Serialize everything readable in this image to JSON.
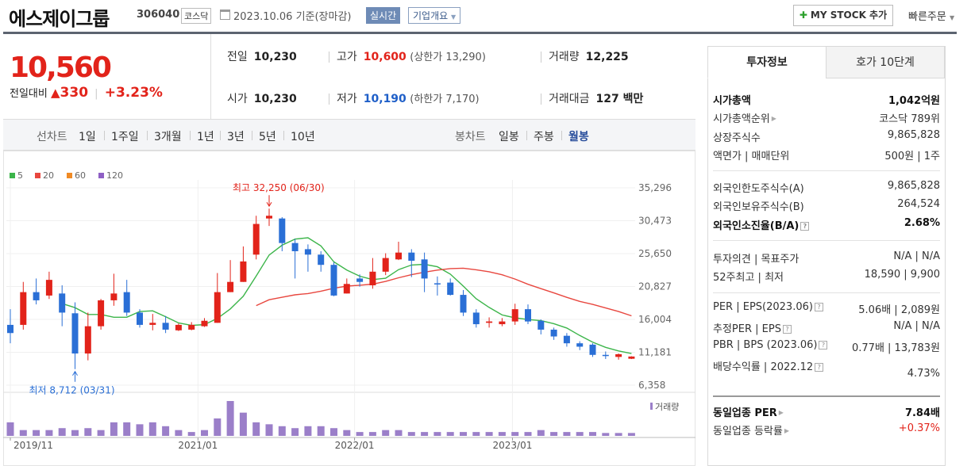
{
  "header": {
    "company": "에스제이그룹",
    "code": "306040",
    "market": "코스닥",
    "date": "2023.10.06 기준(장마감)",
    "realtime": "실시간",
    "corp_info": "기업개요",
    "my_stock": "MY STOCK 추가",
    "quick_order": "빠른주문"
  },
  "price": {
    "current": "10,560",
    "change_label": "전일대비",
    "change": "330",
    "change_pct": "+3.23%"
  },
  "stats": {
    "prev_label": "전일",
    "prev": "10,230",
    "high_label": "고가",
    "high": "10,600",
    "upper_limit": "(상한가 13,290)",
    "volume_label": "거래량",
    "volume": "12,225",
    "open_label": "시가",
    "open": "10,230",
    "low_label": "저가",
    "low": "10,190",
    "lower_limit": "(하한가 7,170)",
    "amount_label": "거래대금",
    "amount": "127 백만"
  },
  "period_bar": {
    "line_chart": "선차트",
    "periods": [
      "1일",
      "1주일",
      "3개월",
      "1년",
      "3년",
      "5년",
      "10년"
    ],
    "candle_chart": "봉차트",
    "candles": [
      "일봉",
      "주봉",
      "월봉"
    ],
    "active_candle": "월봉"
  },
  "chart_data": {
    "type": "candlestick",
    "legend": [
      {
        "name": "5",
        "color": "#3cb54a"
      },
      {
        "name": "20",
        "color": "#e8473f"
      },
      {
        "name": "60",
        "color": "#f08a24"
      },
      {
        "name": "120",
        "color": "#8e5fc4"
      }
    ],
    "y_ticks": [
      "35,296",
      "30,473",
      "25,650",
      "20,827",
      "16,004",
      "11,181",
      "6,358"
    ],
    "y_range": [
      6358,
      35296
    ],
    "x_labels": [
      "2019/11",
      "2021/01",
      "2022/01",
      "2023/01"
    ],
    "max_annotation": "최고 32,250 (06/30)",
    "min_annotation": "최저 8,712 (03/31)",
    "volume_label": "거래량",
    "candles": [
      {
        "o": 15200,
        "c": 14000,
        "h": 17500,
        "l": 12500
      },
      {
        "o": 15200,
        "c": 20000,
        "h": 21500,
        "l": 14500
      },
      {
        "o": 20000,
        "c": 18800,
        "h": 22000,
        "l": 18200
      },
      {
        "o": 19500,
        "c": 21800,
        "h": 23000,
        "l": 19000
      },
      {
        "o": 19800,
        "c": 17000,
        "h": 21000,
        "l": 15000
      },
      {
        "o": 16900,
        "c": 11000,
        "h": 18500,
        "l": 8712
      },
      {
        "o": 11000,
        "c": 15000,
        "h": 17000,
        "l": 10000
      },
      {
        "o": 15000,
        "c": 18800,
        "h": 19000,
        "l": 14500
      },
      {
        "o": 18800,
        "c": 19800,
        "h": 22700,
        "l": 18000
      },
      {
        "o": 20000,
        "c": 17000,
        "h": 21800,
        "l": 16500
      },
      {
        "o": 17000,
        "c": 15200,
        "h": 17500,
        "l": 14800
      },
      {
        "o": 15200,
        "c": 15500,
        "h": 16800,
        "l": 14400
      },
      {
        "o": 15500,
        "c": 14500,
        "h": 16500,
        "l": 14000
      },
      {
        "o": 14400,
        "c": 15200,
        "h": 15400,
        "l": 14300
      },
      {
        "o": 14500,
        "c": 15200,
        "h": 15600,
        "l": 14400
      },
      {
        "o": 15000,
        "c": 15800,
        "h": 16200,
        "l": 14900
      },
      {
        "o": 15500,
        "c": 20000,
        "h": 22800,
        "l": 15500
      },
      {
        "o": 20000,
        "c": 21500,
        "h": 24700,
        "l": 20000
      },
      {
        "o": 21500,
        "c": 24500,
        "h": 26700,
        "l": 21500
      },
      {
        "o": 25500,
        "c": 30000,
        "h": 31200,
        "l": 24800
      },
      {
        "o": 30800,
        "c": 31200,
        "h": 32250,
        "l": 29700
      },
      {
        "o": 30800,
        "c": 27200,
        "h": 31000,
        "l": 26000
      },
      {
        "o": 27200,
        "c": 26000,
        "h": 27800,
        "l": 22000
      },
      {
        "o": 26300,
        "c": 25500,
        "h": 27000,
        "l": 23000
      },
      {
        "o": 25500,
        "c": 24000,
        "h": 26000,
        "l": 23000
      },
      {
        "o": 24000,
        "c": 19500,
        "h": 24400,
        "l": 19400
      },
      {
        "o": 19800,
        "c": 21200,
        "h": 22000,
        "l": 19800
      },
      {
        "o": 22000,
        "c": 21500,
        "h": 22600,
        "l": 20800
      },
      {
        "o": 21000,
        "c": 23000,
        "h": 25000,
        "l": 20500
      },
      {
        "o": 23000,
        "c": 25000,
        "h": 25700,
        "l": 22500
      },
      {
        "o": 24800,
        "c": 25800,
        "h": 27400,
        "l": 24700
      },
      {
        "o": 25800,
        "c": 24600,
        "h": 26300,
        "l": 22200
      },
      {
        "o": 24800,
        "c": 22000,
        "h": 25800,
        "l": 20000
      },
      {
        "o": 21300,
        "c": 21200,
        "h": 22300,
        "l": 19500
      },
      {
        "o": 21400,
        "c": 19600,
        "h": 22000,
        "l": 19500
      },
      {
        "o": 19600,
        "c": 17000,
        "h": 20300,
        "l": 16500
      },
      {
        "o": 17000,
        "c": 15300,
        "h": 17500,
        "l": 14800
      },
      {
        "o": 15500,
        "c": 15700,
        "h": 16300,
        "l": 14800
      },
      {
        "o": 15300,
        "c": 15700,
        "h": 16200,
        "l": 15000
      },
      {
        "o": 15700,
        "c": 17500,
        "h": 18300,
        "l": 15200
      },
      {
        "o": 17500,
        "c": 15700,
        "h": 18200,
        "l": 15300
      },
      {
        "o": 15800,
        "c": 14500,
        "h": 16000,
        "l": 13800
      },
      {
        "o": 14500,
        "c": 13500,
        "h": 14800,
        "l": 13000
      },
      {
        "o": 13600,
        "c": 12500,
        "h": 14000,
        "l": 12000
      },
      {
        "o": 12500,
        "c": 12000,
        "h": 12800,
        "l": 11500
      },
      {
        "o": 12300,
        "c": 10800,
        "h": 12500,
        "l": 10500
      },
      {
        "o": 10800,
        "c": 10700,
        "h": 11300,
        "l": 10200
      },
      {
        "o": 10500,
        "c": 10900,
        "h": 11000,
        "l": 10100
      },
      {
        "o": 10230,
        "c": 10560,
        "h": 10600,
        "l": 10190
      }
    ],
    "volumes": [
      7,
      3,
      3,
      3,
      4,
      3,
      4,
      3,
      7,
      7,
      6,
      7,
      5,
      3,
      2,
      3,
      9,
      18,
      12,
      7,
      6,
      5,
      4,
      5,
      5,
      4,
      3,
      2,
      2,
      3,
      3,
      2,
      2,
      2,
      2,
      2,
      2,
      2,
      2,
      2,
      2,
      3,
      2,
      2,
      2,
      2,
      1.5,
      1.5,
      1.5
    ]
  },
  "right_panel": {
    "tab_active": "투자정보",
    "tab_inactive": "호가 10단계",
    "rows": [
      {
        "k": "시가총액",
        "v": "1,042억원",
        "bold": true
      },
      {
        "k": "시가총액순위",
        "v": "코스닥 789위"
      },
      {
        "k": "상장주식수",
        "v": "9,865,828"
      },
      {
        "k": "액면가 | 매매단위",
        "v": "500원 | 1주"
      },
      {
        "k": "외국인한도주식수(A)",
        "v": "9,865,828"
      },
      {
        "k": "외국인보유주식수(B)",
        "v": "264,524"
      },
      {
        "k": "외국인소진율(B/A)",
        "v": "2.68%",
        "bold": true
      },
      {
        "k": "투자의견 | 목표주가",
        "v": "N/A | N/A"
      },
      {
        "k": "52주최고 | 최저",
        "v": "18,590 | 9,900"
      },
      {
        "k": "PER | EPS(2023.06)",
        "v": "5.06배 | 2,089원"
      },
      {
        "k": "추정PER | EPS",
        "v": "N/A | N/A"
      },
      {
        "k": "PBR | BPS (2023.06)",
        "v": "0.77배 | 13,783원"
      },
      {
        "k": "배당수익률 | 2022.12",
        "v": "4.73%"
      },
      {
        "k": "동일업종 PER",
        "v": "7.84배",
        "bold": true
      },
      {
        "k": "동일업종 등락률",
        "v": "+0.37%"
      }
    ]
  }
}
